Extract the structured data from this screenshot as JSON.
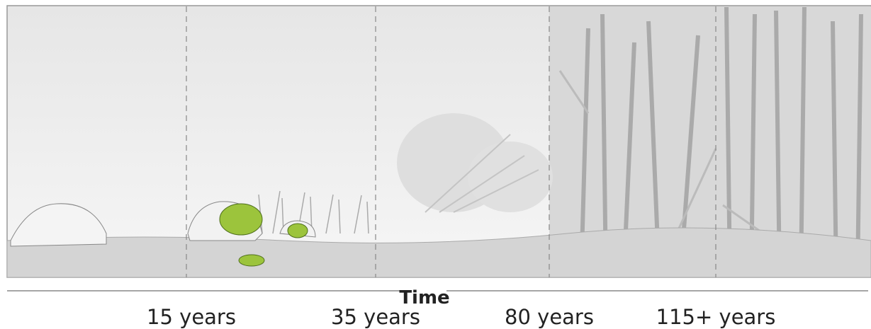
{
  "axis_label": "Time",
  "stages": [
    "15 years",
    "35 years",
    "80 years",
    "115+ years"
  ]
}
